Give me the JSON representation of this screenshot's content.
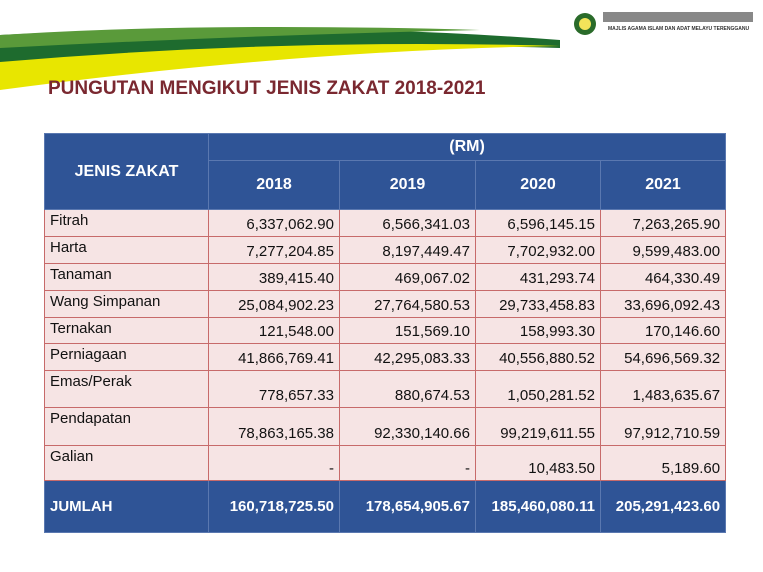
{
  "header": {
    "title": "PUNGUTAN MENGIKUT JENIS ZAKAT 2018-2021",
    "org": "MAJLIS AGAMA ISLAM DAN ADAT MELAYU TERENGGANU"
  },
  "table": {
    "corner": "JENIS ZAKAT",
    "unit": "(RM)",
    "years": [
      "2018",
      "2019",
      "2020",
      "2021"
    ],
    "rows": [
      [
        "Fitrah",
        "6,337,062.90",
        "6,566,341.03",
        "6,596,145.15",
        "7,263,265.90"
      ],
      [
        "Harta",
        "7,277,204.85",
        "8,197,449.47",
        "7,702,932.00",
        "9,599,483.00"
      ],
      [
        "Tanaman",
        "389,415.40",
        "469,067.02",
        "431,293.74",
        "464,330.49"
      ],
      [
        "Wang Simpanan",
        "25,084,902.23",
        "27,764,580.53",
        "29,733,458.83",
        "33,696,092.43"
      ],
      [
        "Ternakan",
        "121,548.00",
        "151,569.10",
        "158,993.30",
        "170,146.60"
      ],
      [
        "Perniagaan",
        "41,866,769.41",
        "42,295,083.33",
        "40,556,880.52",
        "54,696,569.32"
      ],
      [
        "Emas/Perak",
        "778,657.33",
        "880,674.53",
        "1,050,281.52",
        "1,483,635.67"
      ],
      [
        "Pendapatan",
        "78,863,165.38",
        "92,330,140.66",
        "99,219,611.55",
        "97,912,710.59"
      ],
      [
        "Galian",
        "-",
        "-",
        "10,483.50",
        "5,189.60"
      ]
    ],
    "total": [
      "JUMLAH",
      "160,718,725.50",
      "178,654,905.67",
      "185,460,080.11",
      "205,291,423.60"
    ]
  }
}
